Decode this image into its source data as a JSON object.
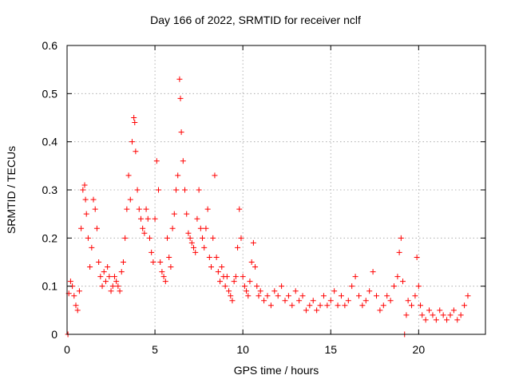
{
  "chart_data": {
    "type": "scatter",
    "title": "Day 166 of 2022, SRMTID for receiver nclf",
    "xlabel": "GPS time / hours",
    "ylabel": "SRMTID / TECUs",
    "xlim": [
      0,
      23.8
    ],
    "ylim": [
      0,
      0.6
    ],
    "xticks": [
      0,
      5,
      10,
      15,
      20
    ],
    "yticks": [
      0,
      0.1,
      0.2,
      0.3,
      0.4,
      0.5,
      0.6
    ],
    "grid": true,
    "marker": "+",
    "color": "#ff0000",
    "series": [
      {
        "name": "SRMTID",
        "x": [
          0.05,
          0.1,
          0.2,
          0.3,
          0.4,
          0.5,
          0.6,
          0.7,
          0.8,
          0.9,
          1.0,
          1.05,
          1.1,
          1.2,
          1.3,
          1.4,
          1.5,
          1.6,
          1.7,
          1.8,
          1.9,
          2.0,
          2.1,
          2.2,
          2.3,
          2.4,
          2.5,
          2.6,
          2.7,
          2.8,
          2.9,
          3.0,
          3.1,
          3.2,
          3.3,
          3.4,
          3.5,
          3.6,
          3.7,
          3.8,
          3.85,
          3.9,
          4.0,
          4.1,
          4.2,
          4.3,
          4.4,
          4.5,
          4.6,
          4.7,
          4.8,
          4.9,
          5.0,
          5.1,
          5.2,
          5.3,
          5.4,
          5.5,
          5.6,
          5.7,
          5.8,
          5.9,
          6.0,
          6.1,
          6.2,
          6.3,
          6.4,
          6.45,
          6.5,
          6.6,
          6.7,
          6.8,
          6.9,
          7.0,
          7.1,
          7.2,
          7.3,
          7.4,
          7.5,
          7.6,
          7.7,
          7.8,
          7.9,
          8.0,
          8.1,
          8.2,
          8.3,
          8.4,
          8.5,
          8.6,
          8.7,
          8.8,
          8.9,
          9.0,
          9.1,
          9.2,
          9.3,
          9.4,
          9.5,
          9.6,
          9.7,
          9.8,
          9.9,
          10.0,
          10.1,
          10.2,
          10.3,
          10.4,
          10.5,
          10.6,
          10.7,
          10.8,
          10.9,
          11.0,
          11.2,
          11.4,
          11.6,
          11.8,
          12.0,
          12.2,
          12.4,
          12.6,
          12.8,
          13.0,
          13.2,
          13.4,
          13.6,
          13.8,
          14.0,
          14.2,
          14.4,
          14.6,
          14.8,
          15.0,
          15.2,
          15.4,
          15.6,
          15.8,
          16.0,
          16.2,
          16.4,
          16.6,
          16.8,
          17.0,
          17.2,
          17.4,
          17.6,
          17.8,
          18.0,
          18.2,
          18.4,
          18.6,
          18.8,
          18.9,
          19.0,
          19.1,
          19.2,
          19.3,
          19.4,
          19.6,
          19.8,
          19.9,
          20.0,
          20.1,
          20.2,
          20.4,
          20.6,
          20.8,
          21.0,
          21.2,
          21.4,
          21.6,
          21.8,
          22.0,
          22.2,
          22.4,
          22.6,
          22.8
        ],
        "y": [
          0.0,
          0.085,
          0.11,
          0.1,
          0.08,
          0.06,
          0.05,
          0.09,
          0.22,
          0.3,
          0.31,
          0.28,
          0.25,
          0.2,
          0.14,
          0.18,
          0.28,
          0.26,
          0.22,
          0.15,
          0.12,
          0.1,
          0.13,
          0.11,
          0.14,
          0.12,
          0.09,
          0.1,
          0.12,
          0.11,
          0.1,
          0.09,
          0.13,
          0.15,
          0.2,
          0.26,
          0.33,
          0.28,
          0.4,
          0.45,
          0.44,
          0.38,
          0.3,
          0.26,
          0.24,
          0.22,
          0.21,
          0.26,
          0.24,
          0.2,
          0.17,
          0.15,
          0.24,
          0.36,
          0.3,
          0.15,
          0.13,
          0.12,
          0.11,
          0.2,
          0.16,
          0.14,
          0.22,
          0.25,
          0.3,
          0.33,
          0.53,
          0.49,
          0.42,
          0.36,
          0.3,
          0.25,
          0.21,
          0.2,
          0.19,
          0.18,
          0.17,
          0.24,
          0.3,
          0.22,
          0.2,
          0.18,
          0.22,
          0.26,
          0.16,
          0.14,
          0.2,
          0.33,
          0.16,
          0.13,
          0.11,
          0.14,
          0.12,
          0.1,
          0.12,
          0.09,
          0.08,
          0.07,
          0.11,
          0.12,
          0.18,
          0.26,
          0.2,
          0.12,
          0.1,
          0.09,
          0.08,
          0.11,
          0.15,
          0.19,
          0.14,
          0.1,
          0.08,
          0.09,
          0.07,
          0.08,
          0.06,
          0.09,
          0.08,
          0.1,
          0.07,
          0.08,
          0.06,
          0.09,
          0.07,
          0.08,
          0.05,
          0.06,
          0.07,
          0.05,
          0.06,
          0.08,
          0.06,
          0.07,
          0.09,
          0.06,
          0.08,
          0.06,
          0.07,
          0.1,
          0.12,
          0.08,
          0.06,
          0.07,
          0.09,
          0.13,
          0.08,
          0.05,
          0.06,
          0.08,
          0.07,
          0.1,
          0.12,
          0.17,
          0.2,
          0.11,
          0.0,
          0.04,
          0.07,
          0.06,
          0.08,
          0.16,
          0.1,
          0.06,
          0.04,
          0.03,
          0.05,
          0.04,
          0.03,
          0.05,
          0.04,
          0.03,
          0.04,
          0.05,
          0.03,
          0.04,
          0.06,
          0.08
        ]
      }
    ]
  }
}
